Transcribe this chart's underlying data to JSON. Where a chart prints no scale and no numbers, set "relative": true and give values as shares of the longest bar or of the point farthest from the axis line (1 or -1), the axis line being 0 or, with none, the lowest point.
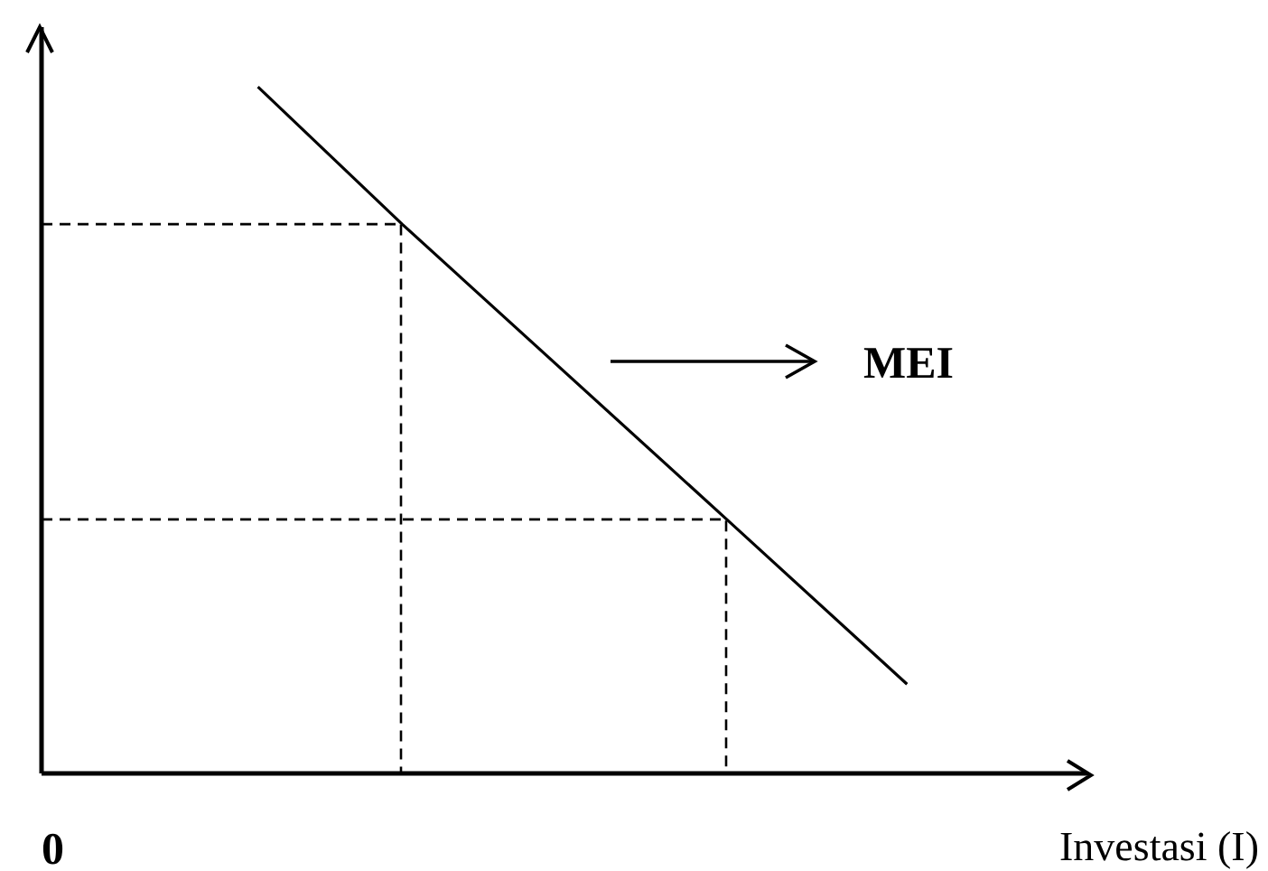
{
  "chart_data": {
    "type": "line",
    "relative": true,
    "xlabel": "Investasi (I)",
    "annotations": [
      "0"
    ],
    "categories": [
      null,
      null,
      null,
      null,
      null,
      null,
      null,
      null,
      null,
      null,
      null,
      null,
      null,
      null,
      null,
      null,
      null,
      null,
      null,
      null,
      null,
      null,
      null,
      null,
      null,
      null,
      null,
      null,
      null,
      null
    ],
    "series": [
      {
        "name": "MEI",
        "color": "#000000",
        "values": [
          null,
          null,
          null,
          null,
          null,
          null,
          1,
          null,
          null,
          null,
          0.8,
          null,
          null,
          null,
          null,
          null,
          null,
          null,
          null,
          0.37,
          null,
          null,
          null,
          null,
          0.13,
          null,
          null,
          null,
          null,
          null
        ]
      }
    ],
    "ref_lines": [
      {
        "axis": "y",
        "value": 0.8,
        "color": "#000000",
        "line_style": "dashed"
      },
      {
        "axis": "y",
        "value": 0.37,
        "color": "#000000",
        "line_style": "dashed"
      }
    ],
    "marker": "none",
    "line_style": "solid",
    "grid": false,
    "legend": "right"
  }
}
